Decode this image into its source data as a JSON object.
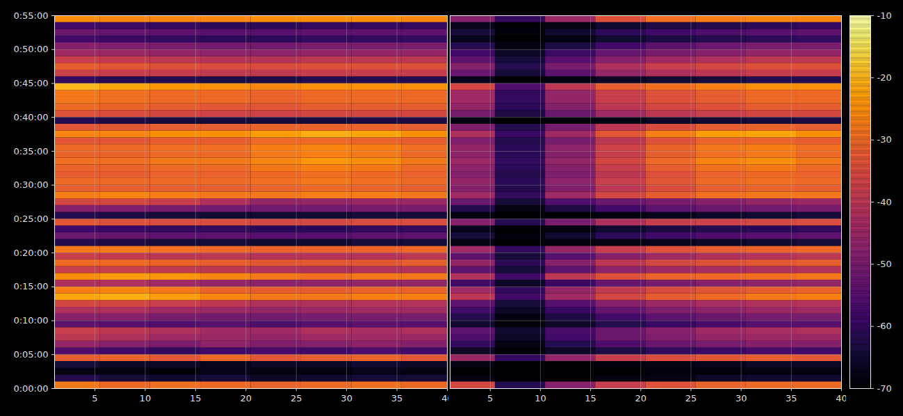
{
  "chart_data": {
    "type": "heatmap",
    "color": "inferno",
    "grid": true,
    "xlim": [
      1,
      40
    ],
    "xticks": [
      5,
      10,
      15,
      20,
      25,
      30,
      35,
      40
    ],
    "ylim": [
      0,
      3300
    ],
    "yticks": [
      {
        "value": 0,
        "label": "0:00:00"
      },
      {
        "value": 300,
        "label": "0:05:00"
      },
      {
        "value": 600,
        "label": "0:10:00"
      },
      {
        "value": 900,
        "label": "0:15:00"
      },
      {
        "value": 1200,
        "label": "0:20:00"
      },
      {
        "value": 1500,
        "label": "0:25:00"
      },
      {
        "value": 1800,
        "label": "0:30:00"
      },
      {
        "value": 2100,
        "label": "0:35:00"
      },
      {
        "value": 2400,
        "label": "0:40:00"
      },
      {
        "value": 2700,
        "label": "0:45:00"
      },
      {
        "value": 3000,
        "label": "0:50:00"
      },
      {
        "value": 3300,
        "label": "0:55:00"
      }
    ],
    "x": [
      3,
      8,
      13,
      18,
      23,
      28,
      33,
      38
    ],
    "y": [
      0,
      60,
      120,
      180,
      240,
      300,
      360,
      420,
      480,
      540,
      600,
      660,
      720,
      780,
      840,
      900,
      960,
      1020,
      1080,
      1140,
      1200,
      1260,
      1320,
      1380,
      1440,
      1500,
      1560,
      1620,
      1680,
      1740,
      1800,
      1860,
      1920,
      1980,
      2040,
      2100,
      2160,
      2220,
      2280,
      2340,
      2400,
      2460,
      2520,
      2580,
      2640,
      2700,
      2760,
      2820,
      2880,
      2940,
      3000,
      3060,
      3120,
      3180,
      3240
    ],
    "colorbar": {
      "range": [
        -70,
        -10
      ],
      "ticks": [
        -70,
        -60,
        -50,
        -40,
        -30,
        -20,
        -10
      ]
    },
    "panels": [
      {
        "values": [
          [
            -28,
            -30,
            -29,
            -30,
            -31,
            -30,
            -29,
            -30
          ],
          [
            -62,
            -64,
            -65,
            -64,
            -66,
            -65,
            -64,
            -64
          ],
          [
            -68,
            -68,
            -69,
            -67,
            -68,
            -68,
            -67,
            -68
          ],
          [
            -64,
            -66,
            -66,
            -67,
            -66,
            -66,
            -65,
            -66
          ],
          [
            -32,
            -31,
            -33,
            -30,
            -33,
            -32,
            -31,
            -33
          ],
          [
            -56,
            -58,
            -60,
            -58,
            -57,
            -58,
            -56,
            -58
          ],
          [
            -46,
            -48,
            -50,
            -47,
            -49,
            -48,
            -47,
            -48
          ],
          [
            -40,
            -42,
            -44,
            -45,
            -46,
            -44,
            -44,
            -45
          ],
          [
            -38,
            -40,
            -42,
            -44,
            -44,
            -42,
            -43,
            -42
          ],
          [
            -54,
            -55,
            -56,
            -55,
            -56,
            -55,
            -54,
            -55
          ],
          [
            -48,
            -48,
            -50,
            -51,
            -51,
            -50,
            -50,
            -50
          ],
          [
            -42,
            -42,
            -44,
            -45,
            -46,
            -45,
            -44,
            -44
          ],
          [
            -36,
            -36,
            -38,
            -40,
            -42,
            -42,
            -41,
            -41
          ],
          [
            -22,
            -21,
            -23,
            -26,
            -28,
            -28,
            -27,
            -27
          ],
          [
            -27,
            -26,
            -28,
            -31,
            -32,
            -32,
            -31,
            -31
          ],
          [
            -42,
            -42,
            -44,
            -46,
            -47,
            -47,
            -46,
            -46
          ],
          [
            -25,
            -23,
            -24,
            -26,
            -28,
            -29,
            -28,
            -28
          ],
          [
            -38,
            -38,
            -39,
            -40,
            -41,
            -42,
            -41,
            -41
          ],
          [
            -30,
            -30,
            -31,
            -32,
            -33,
            -33,
            -33,
            -32
          ],
          [
            -38,
            -39,
            -40,
            -40,
            -41,
            -41,
            -41,
            -40
          ],
          [
            -28,
            -28,
            -29,
            -30,
            -31,
            -31,
            -31,
            -30
          ],
          [
            -62,
            -63,
            -64,
            -64,
            -65,
            -65,
            -64,
            -64
          ],
          [
            -52,
            -53,
            -54,
            -54,
            -55,
            -55,
            -54,
            -54
          ],
          [
            -58,
            -59,
            -60,
            -60,
            -61,
            -61,
            -60,
            -60
          ],
          [
            -33,
            -34,
            -35,
            -35,
            -36,
            -36,
            -35,
            -35
          ],
          [
            -62,
            -63,
            -64,
            -65,
            -65,
            -65,
            -64,
            -64
          ],
          [
            -48,
            -49,
            -50,
            -51,
            -51,
            -51,
            -50,
            -50
          ],
          [
            -36,
            -36,
            -38,
            -42,
            -46,
            -46,
            -45,
            -45
          ],
          [
            -27,
            -26,
            -27,
            -28,
            -28,
            -27,
            -27,
            -28
          ],
          [
            -32,
            -32,
            -32,
            -32,
            -31,
            -30,
            -31,
            -32
          ],
          [
            -30,
            -30,
            -30,
            -30,
            -29,
            -28,
            -29,
            -30
          ],
          [
            -32,
            -32,
            -31,
            -31,
            -30,
            -29,
            -30,
            -31
          ],
          [
            -31,
            -31,
            -30,
            -30,
            -28,
            -27,
            -28,
            -30
          ],
          [
            -29,
            -29,
            -28,
            -28,
            -26,
            -24,
            -25,
            -28
          ],
          [
            -31,
            -31,
            -30,
            -30,
            -28,
            -27,
            -28,
            -30
          ],
          [
            -30,
            -30,
            -29,
            -29,
            -27,
            -26,
            -27,
            -29
          ],
          [
            -33,
            -33,
            -32,
            -32,
            -30,
            -30,
            -31,
            -32
          ],
          [
            -26,
            -26,
            -25,
            -25,
            -23,
            -21,
            -22,
            -25
          ],
          [
            -33,
            -33,
            -32,
            -32,
            -31,
            -31,
            -31,
            -32
          ],
          [
            -62,
            -63,
            -64,
            -64,
            -64,
            -64,
            -63,
            -63
          ],
          [
            -34,
            -35,
            -36,
            -37,
            -37,
            -36,
            -36,
            -36
          ],
          [
            -30,
            -31,
            -32,
            -33,
            -33,
            -32,
            -32,
            -32
          ],
          [
            -28,
            -29,
            -30,
            -30,
            -31,
            -30,
            -30,
            -30
          ],
          [
            -28,
            -29,
            -30,
            -30,
            -31,
            -30,
            -30,
            -30
          ],
          [
            -20,
            -22,
            -24,
            -25,
            -26,
            -25,
            -25,
            -25
          ],
          [
            -60,
            -62,
            -62,
            -63,
            -63,
            -62,
            -62,
            -62
          ],
          [
            -37,
            -38,
            -38,
            -39,
            -39,
            -38,
            -38,
            -38
          ],
          [
            -32,
            -33,
            -34,
            -35,
            -35,
            -34,
            -34,
            -34
          ],
          [
            -38,
            -39,
            -40,
            -41,
            -41,
            -40,
            -40,
            -40
          ],
          [
            -44,
            -45,
            -46,
            -47,
            -47,
            -46,
            -46,
            -46
          ],
          [
            -48,
            -49,
            -50,
            -51,
            -51,
            -50,
            -50,
            -50
          ],
          [
            -58,
            -59,
            -60,
            -61,
            -61,
            -60,
            -60,
            -60
          ],
          [
            -52,
            -53,
            -54,
            -55,
            -55,
            -54,
            -54,
            -54
          ],
          [
            -58,
            -59,
            -60,
            -61,
            -61,
            -60,
            -60,
            -60
          ],
          [
            -25,
            -26,
            -26,
            -26,
            -25,
            -25,
            -25,
            -26
          ]
        ]
      },
      {
        "tick_labels": "x",
        "values": [
          [
            -36,
            -62,
            -48,
            -38,
            -34,
            -31,
            -30,
            -30
          ],
          [
            -68,
            -70,
            -70,
            -68,
            -68,
            -66,
            -65,
            -65
          ],
          [
            -70,
            -70,
            -70,
            -70,
            -69,
            -69,
            -68,
            -68
          ],
          [
            -68,
            -70,
            -70,
            -69,
            -68,
            -67,
            -66,
            -66
          ],
          [
            -45,
            -60,
            -46,
            -38,
            -35,
            -33,
            -32,
            -33
          ],
          [
            -66,
            -69,
            -66,
            -63,
            -60,
            -59,
            -57,
            -58
          ],
          [
            -60,
            -68,
            -62,
            -56,
            -52,
            -50,
            -48,
            -48
          ],
          [
            -56,
            -66,
            -58,
            -52,
            -49,
            -46,
            -45,
            -45
          ],
          [
            -54,
            -65,
            -57,
            -52,
            -48,
            -44,
            -43,
            -42
          ],
          [
            -65,
            -69,
            -66,
            -62,
            -59,
            -57,
            -55,
            -55
          ],
          [
            -62,
            -68,
            -63,
            -58,
            -54,
            -52,
            -50,
            -50
          ],
          [
            -58,
            -66,
            -59,
            -53,
            -49,
            -47,
            -45,
            -44
          ],
          [
            -54,
            -64,
            -55,
            -48,
            -45,
            -43,
            -42,
            -41
          ],
          [
            -40,
            -58,
            -44,
            -36,
            -32,
            -30,
            -28,
            -27
          ],
          [
            -44,
            -60,
            -46,
            -39,
            -35,
            -33,
            -32,
            -31
          ],
          [
            -58,
            -66,
            -59,
            -53,
            -50,
            -48,
            -47,
            -46
          ],
          [
            -42,
            -58,
            -40,
            -34,
            -31,
            -30,
            -29,
            -28
          ],
          [
            -54,
            -64,
            -54,
            -47,
            -44,
            -43,
            -42,
            -41
          ],
          [
            -46,
            -61,
            -48,
            -40,
            -36,
            -34,
            -33,
            -32
          ],
          [
            -54,
            -64,
            -55,
            -48,
            -44,
            -42,
            -41,
            -40
          ],
          [
            -44,
            -60,
            -46,
            -38,
            -34,
            -32,
            -31,
            -30
          ],
          [
            -68,
            -70,
            -69,
            -68,
            -67,
            -66,
            -65,
            -64
          ],
          [
            -64,
            -69,
            -65,
            -61,
            -58,
            -56,
            -55,
            -54
          ],
          [
            -67,
            -70,
            -68,
            -65,
            -63,
            -62,
            -61,
            -60
          ],
          [
            -48,
            -62,
            -50,
            -42,
            -38,
            -37,
            -36,
            -35
          ],
          [
            -68,
            -70,
            -69,
            -68,
            -67,
            -66,
            -65,
            -64
          ],
          [
            -62,
            -68,
            -63,
            -58,
            -54,
            -52,
            -51,
            -50
          ],
          [
            -52,
            -64,
            -56,
            -52,
            -50,
            -48,
            -46,
            -45
          ],
          [
            -44,
            -60,
            -44,
            -36,
            -32,
            -29,
            -28,
            -28
          ],
          [
            -48,
            -62,
            -49,
            -40,
            -35,
            -32,
            -31,
            -32
          ],
          [
            -46,
            -61,
            -47,
            -38,
            -33,
            -30,
            -29,
            -30
          ],
          [
            -48,
            -62,
            -49,
            -40,
            -34,
            -31,
            -30,
            -31
          ],
          [
            -47,
            -61,
            -48,
            -38,
            -32,
            -29,
            -28,
            -30
          ],
          [
            -45,
            -60,
            -46,
            -36,
            -30,
            -26,
            -25,
            -28
          ],
          [
            -47,
            -61,
            -48,
            -38,
            -32,
            -29,
            -28,
            -30
          ],
          [
            -46,
            -61,
            -47,
            -37,
            -31,
            -28,
            -27,
            -29
          ],
          [
            -49,
            -62,
            -50,
            -40,
            -34,
            -31,
            -31,
            -32
          ],
          [
            -42,
            -59,
            -44,
            -33,
            -27,
            -23,
            -22,
            -25
          ],
          [
            -49,
            -62,
            -50,
            -40,
            -35,
            -32,
            -31,
            -32
          ],
          [
            -68,
            -70,
            -69,
            -68,
            -66,
            -65,
            -64,
            -63
          ],
          [
            -50,
            -63,
            -52,
            -44,
            -40,
            -38,
            -36,
            -36
          ],
          [
            -46,
            -61,
            -48,
            -40,
            -36,
            -34,
            -32,
            -32
          ],
          [
            -44,
            -60,
            -46,
            -38,
            -34,
            -32,
            -30,
            -30
          ],
          [
            -44,
            -60,
            -46,
            -38,
            -34,
            -32,
            -30,
            -30
          ],
          [
            -36,
            -56,
            -40,
            -32,
            -29,
            -27,
            -25,
            -25
          ],
          [
            -67,
            -70,
            -68,
            -66,
            -65,
            -64,
            -62,
            -62
          ],
          [
            -52,
            -64,
            -54,
            -46,
            -42,
            -40,
            -38,
            -38
          ],
          [
            -48,
            -62,
            -50,
            -42,
            -38,
            -36,
            -34,
            -34
          ],
          [
            -54,
            -64,
            -55,
            -48,
            -44,
            -42,
            -40,
            -40
          ],
          [
            -58,
            -66,
            -59,
            -53,
            -50,
            -48,
            -46,
            -46
          ],
          [
            -62,
            -68,
            -63,
            -58,
            -54,
            -52,
            -50,
            -50
          ],
          [
            -67,
            -70,
            -68,
            -65,
            -63,
            -62,
            -61,
            -60
          ],
          [
            -64,
            -69,
            -65,
            -61,
            -58,
            -56,
            -55,
            -54
          ],
          [
            -67,
            -70,
            -68,
            -65,
            -63,
            -62,
            -61,
            -60
          ],
          [
            -48,
            -60,
            -45,
            -34,
            -29,
            -27,
            -26,
            -26
          ]
        ]
      }
    ]
  }
}
